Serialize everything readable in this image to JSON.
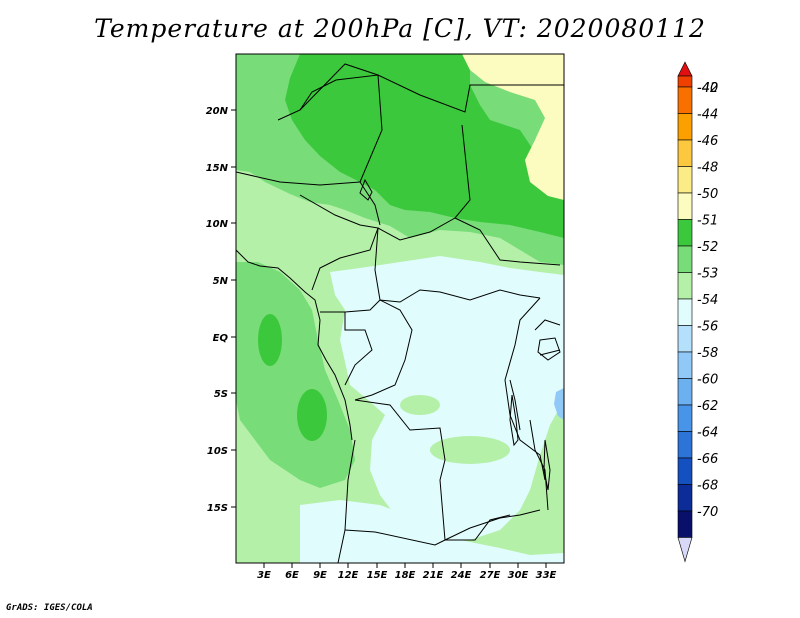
{
  "title": "Temperature at 200hPa [C], VT: 2020080112",
  "credit": "GrADS: IGES/COLA",
  "map": {
    "lat_labels": [
      "20N",
      "15N",
      "10N",
      "5N",
      "EQ",
      "5S",
      "10S",
      "15S"
    ],
    "lon_labels": [
      "3E",
      "6E",
      "9E",
      "12E",
      "15E",
      "18E",
      "21E",
      "24E",
      "27E",
      "30E",
      "33E"
    ]
  },
  "colorbar": {
    "labels": [
      "-40",
      "-42",
      "-44",
      "-46",
      "-48",
      "-50",
      "-51",
      "-52",
      "-53",
      "-54",
      "-56",
      "-58",
      "-60",
      "-62",
      "-64",
      "-66",
      "-68",
      "-70"
    ],
    "colors": [
      "#e01010",
      "#f04000",
      "#f87000",
      "#fca000",
      "#fcc840",
      "#fcec88",
      "#fcfcc0",
      "#3cc83c",
      "#78dc78",
      "#b4f0a8",
      "#e0fcfc",
      "#b4e0fc",
      "#90c8f8",
      "#6cb0f0",
      "#4894e8",
      "#2c74d8",
      "#1450c0",
      "#0c2c98",
      "#08106c",
      "#d8d8f8"
    ]
  },
  "palette": {
    "green_dark": "#3cc83c",
    "green_mid": "#78dc78",
    "green_light": "#b4f0a8",
    "cyan_pale": "#e0fcfc",
    "yellow_pale": "#fcfcc0",
    "blue_light": "#90c8f8"
  }
}
